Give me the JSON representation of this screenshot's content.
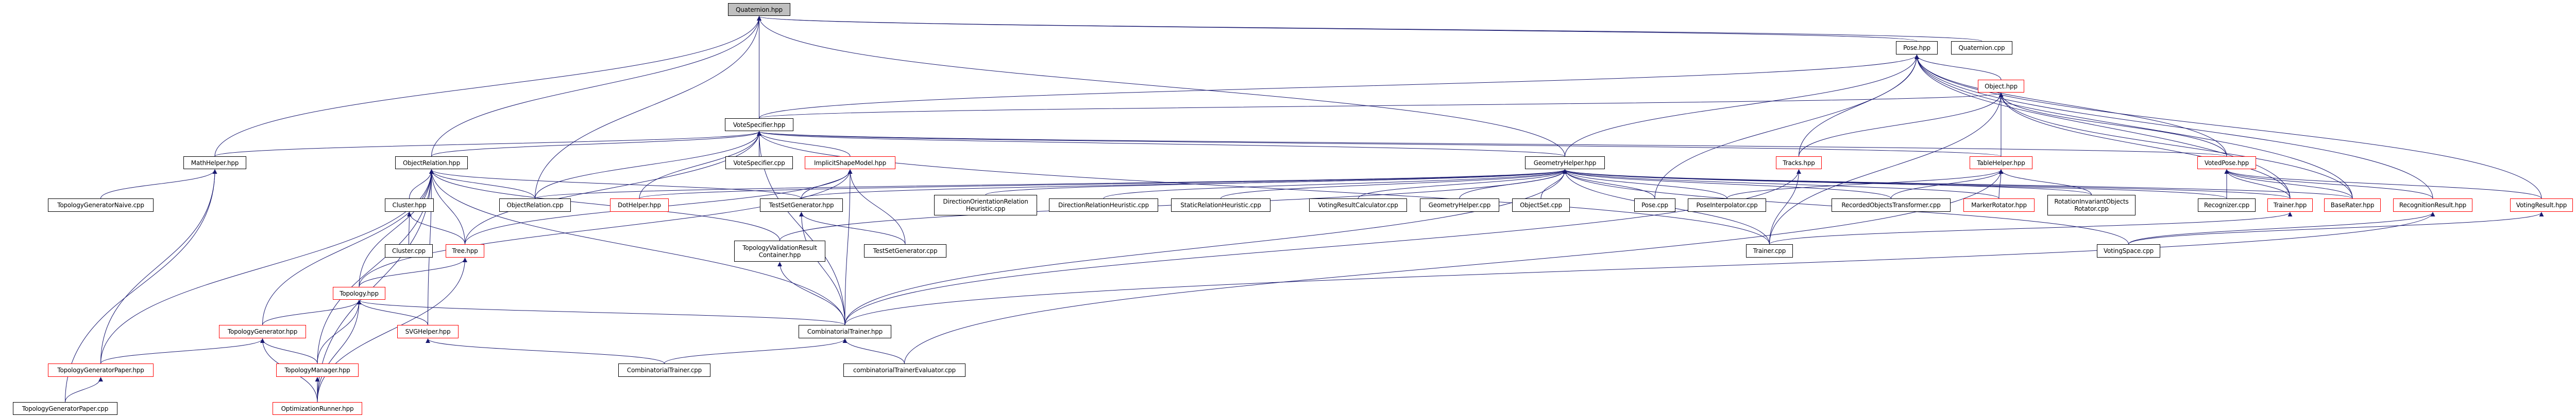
{
  "graph": {
    "colors": {
      "edge": "#191970",
      "highlight_border": "#ff0000",
      "root_fill": "#bfbfbf",
      "node_border": "#000000"
    },
    "nodes": [
      {
        "label": "Quaternion.hpp",
        "root": true
      },
      {
        "label": "Pose.hpp"
      },
      {
        "label": "Quaternion.cpp"
      },
      {
        "label": "Object.hpp",
        "truncated": true
      },
      {
        "label": "VoteSpecifier.hpp"
      },
      {
        "label": "MathHelper.hpp"
      },
      {
        "label": "ObjectRelation.hpp"
      },
      {
        "label": "VoteSpecifier.cpp"
      },
      {
        "label": "ImplicitShapeModel.hpp",
        "truncated": true
      },
      {
        "label": "GeometryHelper.hpp"
      },
      {
        "label": "Tracks.hpp",
        "truncated": true
      },
      {
        "label": "TableHelper.hpp",
        "truncated": true
      },
      {
        "label": "VotedPose.hpp",
        "truncated": true
      },
      {
        "label": "TopologyGeneratorNaive.cpp"
      },
      {
        "label": "Cluster.hpp"
      },
      {
        "label": "ObjectRelation.cpp"
      },
      {
        "label": "DotHelper.hpp",
        "truncated": true
      },
      {
        "label": "TestSetGenerator.hpp"
      },
      {
        "label": "DirectionOrientationRelation\nHeuristic.cpp"
      },
      {
        "label": "DirectionRelationHeuristic.cpp"
      },
      {
        "label": "StaticRelationHeuristic.cpp"
      },
      {
        "label": "VotingResultCalculator.cpp"
      },
      {
        "label": "GeometryHelper.cpp"
      },
      {
        "label": "ObjectSet.cpp"
      },
      {
        "label": "Pose.cpp"
      },
      {
        "label": "PoseInterpolator.cpp"
      },
      {
        "label": "RecordedObjectsTransformer.cpp"
      },
      {
        "label": "MarkerRotator.hpp",
        "truncated": true
      },
      {
        "label": "RotationInvariantObjects\nRotator.cpp"
      },
      {
        "label": "Recognizer.cpp"
      },
      {
        "label": "Trainer.hpp",
        "truncated": true
      },
      {
        "label": "BaseRater.hpp",
        "truncated": true
      },
      {
        "label": "RecognitionResult.hpp",
        "truncated": true
      },
      {
        "label": "VotingResult.hpp",
        "truncated": true
      },
      {
        "label": "Cluster.cpp"
      },
      {
        "label": "Tree.hpp",
        "truncated": true
      },
      {
        "label": "TopologyValidationResult\nContainer.hpp"
      },
      {
        "label": "TestSetGenerator.cpp"
      },
      {
        "label": "Trainer.cpp"
      },
      {
        "label": "VotingSpace.cpp"
      },
      {
        "label": "Topology.hpp",
        "truncated": true
      },
      {
        "label": "TopologyGenerator.hpp",
        "truncated": true
      },
      {
        "label": "SVGHelper.hpp",
        "truncated": true
      },
      {
        "label": "CombinatorialTrainer.hpp"
      },
      {
        "label": "TopologyGeneratorPaper.hpp",
        "truncated": true
      },
      {
        "label": "TopologyManager.hpp",
        "truncated": true
      },
      {
        "label": "CombinatorialTrainer.cpp"
      },
      {
        "label": "combinatorialTrainerEvaluator.cpp"
      },
      {
        "label": "TopologyGeneratorPaper.cpp"
      },
      {
        "label": "OptimizationRunner.hpp",
        "truncated": true
      }
    ],
    "edges": [
      [
        "Pose.hpp",
        "Quaternion.hpp"
      ],
      [
        "Quaternion.cpp",
        "Quaternion.hpp"
      ],
      [
        "VoteSpecifier.hpp",
        "Quaternion.hpp"
      ],
      [
        "MathHelper.hpp",
        "Quaternion.hpp"
      ],
      [
        "ObjectRelation.hpp",
        "Quaternion.hpp"
      ],
      [
        "ObjectRelation.cpp",
        "Quaternion.hpp"
      ],
      [
        "GeometryHelper.hpp",
        "Quaternion.hpp"
      ],
      [
        "Object.hpp",
        "Pose.hpp"
      ],
      [
        "Tracks.hpp",
        "Pose.hpp"
      ],
      [
        "Pose.cpp",
        "Pose.hpp"
      ],
      [
        "GeometryHelper.hpp",
        "Pose.hpp"
      ],
      [
        "VoteSpecifier.hpp",
        "Pose.hpp"
      ],
      [
        "VotedPose.hpp",
        "Pose.hpp"
      ],
      [
        "RecognitionResult.hpp",
        "Pose.hpp"
      ],
      [
        "VotingResult.hpp",
        "Pose.hpp"
      ],
      [
        "BaseRater.hpp",
        "Pose.hpp"
      ],
      [
        "Trainer.hpp",
        "Pose.hpp"
      ],
      [
        "VoteSpecifier.hpp",
        "Object.hpp"
      ],
      [
        "Tracks.hpp",
        "Object.hpp"
      ],
      [
        "TableHelper.hpp",
        "Object.hpp"
      ],
      [
        "VotedPose.hpp",
        "Object.hpp"
      ],
      [
        "BaseRater.hpp",
        "Object.hpp"
      ],
      [
        "Trainer.hpp",
        "Object.hpp"
      ],
      [
        "Trainer.cpp",
        "Object.hpp"
      ],
      [
        "VoteSpecifier.cpp",
        "VoteSpecifier.hpp"
      ],
      [
        "ImplicitShapeModel.hpp",
        "VoteSpecifier.hpp"
      ],
      [
        "MathHelper.hpp",
        "VoteSpecifier.hpp"
      ],
      [
        "ObjectRelation.hpp",
        "VoteSpecifier.hpp"
      ],
      [
        "ObjectRelation.cpp",
        "VoteSpecifier.hpp"
      ],
      [
        "DotHelper.hpp",
        "VoteSpecifier.hpp"
      ],
      [
        "Tree.hpp",
        "VoteSpecifier.hpp"
      ],
      [
        "CombinatorialTrainer.hpp",
        "VoteSpecifier.hpp"
      ],
      [
        "GeometryHelper.hpp",
        "VoteSpecifier.hpp"
      ],
      [
        "VotedPose.hpp",
        "VoteSpecifier.hpp"
      ],
      [
        "TableHelper.hpp",
        "VoteSpecifier.hpp"
      ],
      [
        "Trainer.cpp",
        "VoteSpecifier.hpp"
      ],
      [
        "TopologyGeneratorNaive.cpp",
        "MathHelper.hpp"
      ],
      [
        "TopologyGeneratorPaper.hpp",
        "MathHelper.hpp"
      ],
      [
        "TopologyGeneratorPaper.cpp",
        "MathHelper.hpp"
      ],
      [
        "Cluster.hpp",
        "ObjectRelation.hpp"
      ],
      [
        "Tree.hpp",
        "ObjectRelation.hpp"
      ],
      [
        "Topology.hpp",
        "ObjectRelation.hpp"
      ],
      [
        "SVGHelper.hpp",
        "ObjectRelation.hpp"
      ],
      [
        "TopologyGenerator.hpp",
        "ObjectRelation.hpp"
      ],
      [
        "TopologyManager.hpp",
        "ObjectRelation.hpp"
      ],
      [
        "OptimizationRunner.hpp",
        "ObjectRelation.hpp"
      ],
      [
        "TopologyGeneratorPaper.hpp",
        "ObjectRelation.hpp"
      ],
      [
        "ObjectRelation.cpp",
        "ObjectRelation.hpp"
      ],
      [
        "CombinatorialTrainer.hpp",
        "ObjectRelation.hpp"
      ],
      [
        "TopologyValidationResult\nContainer.hpp",
        "ObjectRelation.hpp"
      ],
      [
        "TestSetGenerator.hpp",
        "ObjectRelation.hpp"
      ],
      [
        "Cluster.cpp",
        "Cluster.hpp"
      ],
      [
        "Tree.hpp",
        "Cluster.hpp"
      ],
      [
        "Topology.hpp",
        "Tree.hpp"
      ],
      [
        "OptimizationRunner.hpp",
        "Tree.hpp"
      ],
      [
        "TopologyGenerator.hpp",
        "Topology.hpp"
      ],
      [
        "SVGHelper.hpp",
        "Topology.hpp"
      ],
      [
        "TopologyManager.hpp",
        "Topology.hpp"
      ],
      [
        "OptimizationRunner.hpp",
        "Topology.hpp"
      ],
      [
        "CombinatorialTrainer.hpp",
        "Topology.hpp"
      ],
      [
        "TopologyGeneratorPaper.hpp",
        "TopologyGenerator.hpp"
      ],
      [
        "TopologyManager.hpp",
        "TopologyGenerator.hpp"
      ],
      [
        "OptimizationRunner.hpp",
        "TopologyGenerator.hpp"
      ],
      [
        "OptimizationRunner.hpp",
        "TopologyManager.hpp"
      ],
      [
        "TopologyGeneratorPaper.cpp",
        "TopologyGeneratorPaper.hpp"
      ],
      [
        "CombinatorialTrainer.cpp",
        "SVGHelper.hpp"
      ],
      [
        "TestSetGenerator.hpp",
        "ImplicitShapeModel.hpp"
      ],
      [
        "TestSetGenerator.cpp",
        "ImplicitShapeModel.hpp"
      ],
      [
        "CombinatorialTrainer.hpp",
        "ImplicitShapeModel.hpp"
      ],
      [
        "Topology.hpp",
        "ImplicitShapeModel.hpp"
      ],
      [
        "Tree.hpp",
        "ImplicitShapeModel.hpp"
      ],
      [
        "TestSetGenerator.cpp",
        "TestSetGenerator.hpp"
      ],
      [
        "CombinatorialTrainer.hpp",
        "TestSetGenerator.hpp"
      ],
      [
        "CombinatorialTrainer.hpp",
        "TopologyValidationResult\nContainer.hpp"
      ],
      [
        "CombinatorialTrainer.cpp",
        "CombinatorialTrainer.hpp"
      ],
      [
        "combinatorialTrainerEvaluator.cpp",
        "CombinatorialTrainer.hpp"
      ],
      [
        "DirectionOrientationRelation\nHeuristic.cpp",
        "GeometryHelper.hpp"
      ],
      [
        "DirectionRelationHeuristic.cpp",
        "GeometryHelper.hpp"
      ],
      [
        "StaticRelationHeuristic.cpp",
        "GeometryHelper.hpp"
      ],
      [
        "VotingResultCalculator.cpp",
        "GeometryHelper.hpp"
      ],
      [
        "GeometryHelper.cpp",
        "GeometryHelper.hpp"
      ],
      [
        "ObjectSet.cpp",
        "GeometryHelper.hpp"
      ],
      [
        "Pose.cpp",
        "GeometryHelper.hpp"
      ],
      [
        "PoseInterpolator.cpp",
        "GeometryHelper.hpp"
      ],
      [
        "RecordedObjectsTransformer.cpp",
        "GeometryHelper.hpp"
      ],
      [
        "MarkerRotator.hpp",
        "GeometryHelper.hpp"
      ],
      [
        "RotationInvariantObjects\nRotator.cpp",
        "GeometryHelper.hpp"
      ],
      [
        "Recognizer.cpp",
        "GeometryHelper.hpp"
      ],
      [
        "Trainer.cpp",
        "GeometryHelper.hpp"
      ],
      [
        "Trainer.hpp",
        "GeometryHelper.hpp"
      ],
      [
        "BaseRater.hpp",
        "GeometryHelper.hpp"
      ],
      [
        "TestSetGenerator.hpp",
        "GeometryHelper.hpp"
      ],
      [
        "TopologyValidationResult\nContainer.hpp",
        "GeometryHelper.hpp"
      ],
      [
        "DotHelper.hpp",
        "GeometryHelper.hpp"
      ],
      [
        "ObjectRelation.cpp",
        "GeometryHelper.hpp"
      ],
      [
        "VotingSpace.cpp",
        "GeometryHelper.hpp"
      ],
      [
        "CombinatorialTrainer.hpp",
        "GeometryHelper.hpp"
      ],
      [
        "Trainer.cpp",
        "Tracks.hpp"
      ],
      [
        "CombinatorialTrainer.hpp",
        "Tracks.hpp"
      ],
      [
        "MarkerRotator.hpp",
        "TableHelper.hpp"
      ],
      [
        "RecordedObjectsTransformer.cpp",
        "TableHelper.hpp"
      ],
      [
        "PoseInterpolator.cpp",
        "TableHelper.hpp"
      ],
      [
        "RotationInvariantObjects\nRotator.cpp",
        "TableHelper.hpp"
      ],
      [
        "combinatorialTrainerEvaluator.cpp",
        "TableHelper.hpp"
      ],
      [
        "Recognizer.cpp",
        "VotedPose.hpp"
      ],
      [
        "Trainer.hpp",
        "VotedPose.hpp"
      ],
      [
        "BaseRater.hpp",
        "VotedPose.hpp"
      ],
      [
        "RecognitionResult.hpp",
        "VotedPose.hpp"
      ],
      [
        "VotingResult.hpp",
        "VotedPose.hpp"
      ],
      [
        "Trainer.cpp",
        "Trainer.hpp"
      ],
      [
        "VotingSpace.cpp",
        "RecognitionResult.hpp"
      ],
      [
        "CombinatorialTrainer.hpp",
        "RecognitionResult.hpp"
      ],
      [
        "VotingSpace.cpp",
        "VotingResult.hpp"
      ]
    ]
  }
}
